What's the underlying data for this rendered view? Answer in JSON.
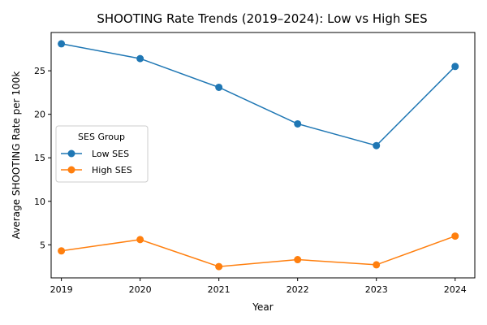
{
  "chart_data": {
    "type": "line",
    "title": "SHOOTING Rate Trends (2019–2024): Low vs High SES",
    "xlabel": "Year",
    "ylabel": "Average SHOOTING Rate per 100k",
    "categories": [
      "2019",
      "2020",
      "2021",
      "2022",
      "2023",
      "2024"
    ],
    "x": [
      2019,
      2020,
      2021,
      2022,
      2023,
      2024
    ],
    "xlim": [
      2018.87,
      2024.25
    ],
    "ylim": [
      1.2,
      29.4
    ],
    "yticks": [
      5,
      10,
      15,
      20,
      25
    ],
    "grid": false,
    "legend": {
      "title": "SES Group",
      "position": "center-left"
    },
    "series": [
      {
        "name": "Low SES",
        "color": "#1f77b4",
        "marker": "circle",
        "values": [
          28.1,
          26.4,
          23.1,
          18.9,
          16.4,
          25.5
        ]
      },
      {
        "name": "High SES",
        "color": "#ff7f0e",
        "marker": "circle",
        "values": [
          4.3,
          5.6,
          2.5,
          3.3,
          2.7,
          6.0
        ]
      }
    ]
  }
}
